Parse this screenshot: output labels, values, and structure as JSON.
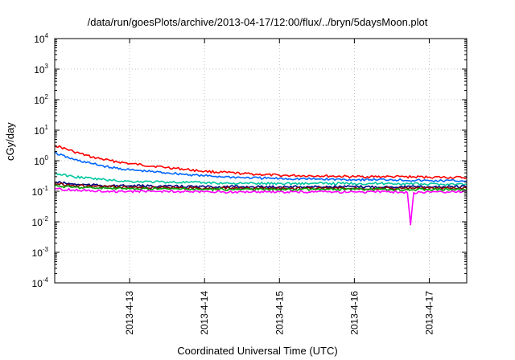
{
  "chart_data": {
    "type": "line",
    "title": "/data/run/goesPlots/archive/2013-04-17/12:00/flux/../bryn/5daysMoon.plot",
    "xlabel": "Coordinated Universal Time (UTC)",
    "ylabel": "cGy/day",
    "yscale": "log",
    "ylim": [
      0.0001,
      10000
    ],
    "xlim": [
      "2013-04-12 00:00",
      "2013-04-17 12:00"
    ],
    "grid": true,
    "y_ticks": [
      {
        "base": "10",
        "exp": "-4"
      },
      {
        "base": "10",
        "exp": "-3"
      },
      {
        "base": "10",
        "exp": "-2"
      },
      {
        "base": "10",
        "exp": "-1"
      },
      {
        "base": "10",
        "exp": "0"
      },
      {
        "base": "10",
        "exp": "1"
      },
      {
        "base": "10",
        "exp": "2"
      },
      {
        "base": "10",
        "exp": "3"
      },
      {
        "base": "10",
        "exp": "4"
      }
    ],
    "x_ticks": [
      {
        "label": "2013-4-13",
        "value": "2013-04-13 00:00"
      },
      {
        "label": "2013-4-14",
        "value": "2013-04-14 00:00"
      },
      {
        "label": "2013-4-15",
        "value": "2013-04-15 00:00"
      },
      {
        "label": "2013-4-16",
        "value": "2013-04-16 00:00"
      },
      {
        "label": "2013-4-17",
        "value": "2013-04-17 00:00"
      }
    ],
    "series": [
      {
        "color": "#ff0000",
        "x": [
          "2013-04-12 00:00",
          "2013-04-12 06:00",
          "2013-04-12 12:00",
          "2013-04-12 18:00",
          "2013-04-13 00:00",
          "2013-04-13 12:00",
          "2013-04-14 00:00",
          "2013-04-14 12:00",
          "2013-04-15 00:00",
          "2013-04-15 12:00",
          "2013-04-16 00:00",
          "2013-04-16 12:00",
          "2013-04-17 00:00",
          "2013-04-17 12:00"
        ],
        "y": [
          3.2,
          2.0,
          1.3,
          1.0,
          0.8,
          0.6,
          0.45,
          0.38,
          0.33,
          0.32,
          0.3,
          0.3,
          0.29,
          0.28
        ]
      },
      {
        "color": "#0066ff",
        "x": [
          "2013-04-12 00:00",
          "2013-04-12 06:00",
          "2013-04-12 12:00",
          "2013-04-12 18:00",
          "2013-04-13 00:00",
          "2013-04-13 12:00",
          "2013-04-14 00:00",
          "2013-04-14 12:00",
          "2013-04-15 00:00",
          "2013-04-15 12:00",
          "2013-04-16 00:00",
          "2013-04-16 12:00",
          "2013-04-17 00:00",
          "2013-04-17 12:00"
        ],
        "y": [
          1.8,
          1.1,
          0.8,
          0.6,
          0.5,
          0.4,
          0.32,
          0.28,
          0.26,
          0.25,
          0.24,
          0.24,
          0.22,
          0.22
        ]
      },
      {
        "color": "#00c8a0",
        "x": [
          "2013-04-12 00:00",
          "2013-04-12 06:00",
          "2013-04-12 12:00",
          "2013-04-12 18:00",
          "2013-04-13 00:00",
          "2013-04-13 12:00",
          "2013-04-14 00:00",
          "2013-04-14 12:00",
          "2013-04-15 00:00",
          "2013-04-15 12:00",
          "2013-04-16 00:00",
          "2013-04-16 12:00",
          "2013-04-17 00:00",
          "2013-04-17 12:00"
        ],
        "y": [
          0.38,
          0.3,
          0.26,
          0.23,
          0.21,
          0.2,
          0.19,
          0.18,
          0.18,
          0.18,
          0.18,
          0.18,
          0.17,
          0.17
        ]
      },
      {
        "color": "#000080",
        "x": [
          "2013-04-12 00:00",
          "2013-04-12 06:00",
          "2013-04-12 12:00",
          "2013-04-12 18:00",
          "2013-04-13 00:00",
          "2013-04-13 12:00",
          "2013-04-14 00:00",
          "2013-04-14 12:00",
          "2013-04-15 00:00",
          "2013-04-15 12:00",
          "2013-04-16 00:00",
          "2013-04-16 12:00",
          "2013-04-17 00:00",
          "2013-04-17 12:00"
        ],
        "y": [
          0.2,
          0.17,
          0.16,
          0.15,
          0.15,
          0.145,
          0.14,
          0.14,
          0.14,
          0.14,
          0.14,
          0.14,
          0.14,
          0.14
        ]
      },
      {
        "color": "#8b0000",
        "x": [
          "2013-04-12 00:00",
          "2013-04-12 06:00",
          "2013-04-12 12:00",
          "2013-04-12 18:00",
          "2013-04-13 00:00",
          "2013-04-13 12:00",
          "2013-04-14 00:00",
          "2013-04-14 12:00",
          "2013-04-15 00:00",
          "2013-04-15 12:00",
          "2013-04-16 00:00",
          "2013-04-16 12:00",
          "2013-04-17 00:00",
          "2013-04-17 12:00"
        ],
        "y": [
          0.18,
          0.155,
          0.145,
          0.14,
          0.135,
          0.13,
          0.125,
          0.125,
          0.125,
          0.125,
          0.125,
          0.125,
          0.125,
          0.125
        ]
      },
      {
        "color": "#00a000",
        "x": [
          "2013-04-12 00:00",
          "2013-04-12 06:00",
          "2013-04-12 12:00",
          "2013-04-12 18:00",
          "2013-04-13 00:00",
          "2013-04-13 12:00",
          "2013-04-14 00:00",
          "2013-04-14 12:00",
          "2013-04-15 00:00",
          "2013-04-15 12:00",
          "2013-04-16 00:00",
          "2013-04-16 12:00",
          "2013-04-17 00:00",
          "2013-04-17 12:00"
        ],
        "y": [
          0.15,
          0.135,
          0.13,
          0.125,
          0.12,
          0.12,
          0.115,
          0.115,
          0.115,
          0.115,
          0.115,
          0.115,
          0.115,
          0.115
        ]
      },
      {
        "color": "#ff00ff",
        "x": [
          "2013-04-12 00:00",
          "2013-04-12 06:00",
          "2013-04-12 12:00",
          "2013-04-12 18:00",
          "2013-04-13 00:00",
          "2013-04-13 12:00",
          "2013-04-14 00:00",
          "2013-04-14 12:00",
          "2013-04-15 00:00",
          "2013-04-15 12:00",
          "2013-04-16 00:00",
          "2013-04-16 12:00",
          "2013-04-16 17:00",
          "2013-04-16 18:00",
          "2013-04-16 19:00",
          "2013-04-17 00:00",
          "2013-04-17 12:00"
        ],
        "y": [
          0.12,
          0.11,
          0.105,
          0.1,
          0.1,
          0.1,
          0.095,
          0.095,
          0.095,
          0.095,
          0.095,
          0.095,
          0.09,
          0.008,
          0.09,
          0.095,
          0.1
        ]
      }
    ]
  }
}
